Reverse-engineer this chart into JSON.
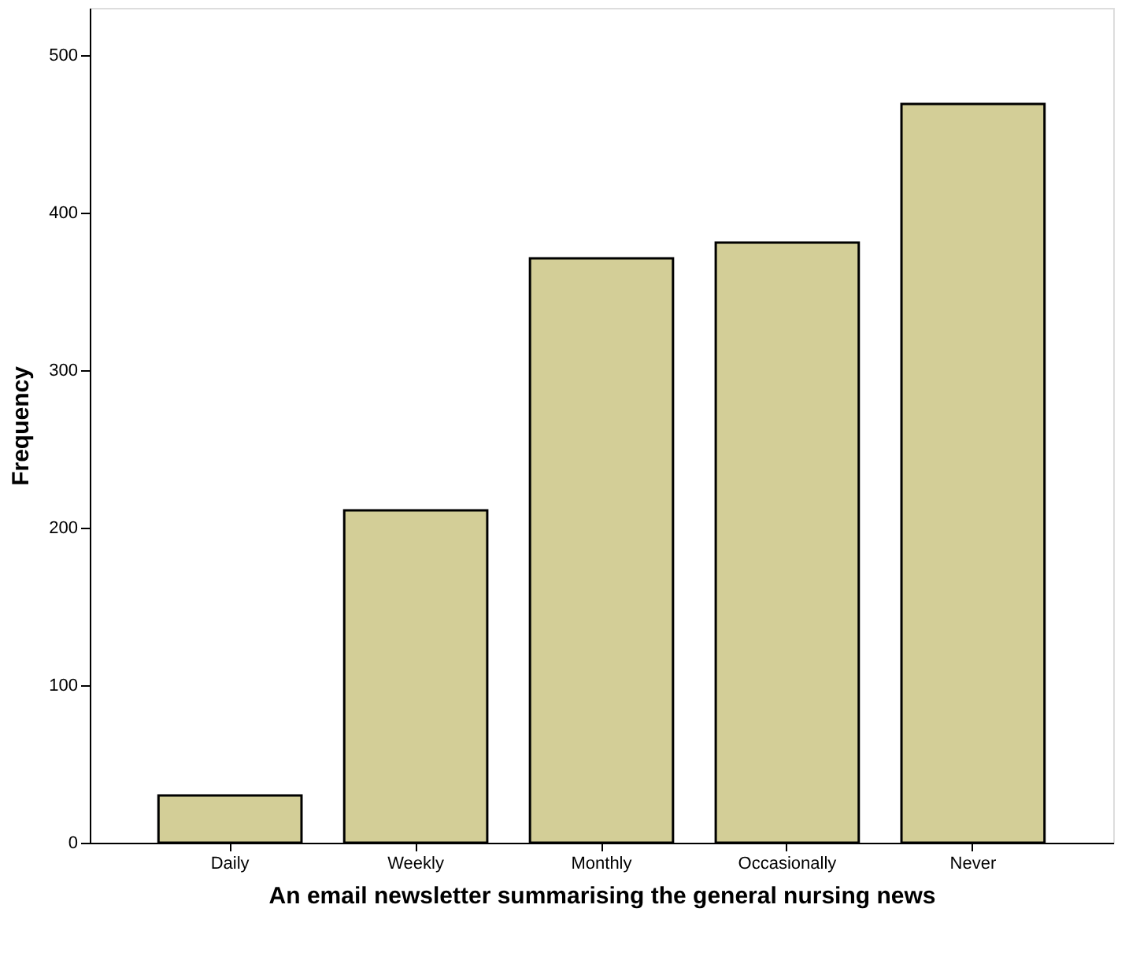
{
  "chart_data": {
    "type": "bar",
    "xlabel": "An email newsletter summarising the general nursing news",
    "ylabel": "Frequency",
    "categories": [
      "Daily",
      "Weekly",
      "Monthly",
      "Occasionally",
      "Never"
    ],
    "values": [
      30,
      211,
      371,
      381,
      469
    ],
    "color": "#d3ce97",
    "ylim": [
      0,
      530
    ],
    "yticks": [
      0,
      100,
      200,
      300,
      400,
      500
    ],
    "grid": false
  }
}
